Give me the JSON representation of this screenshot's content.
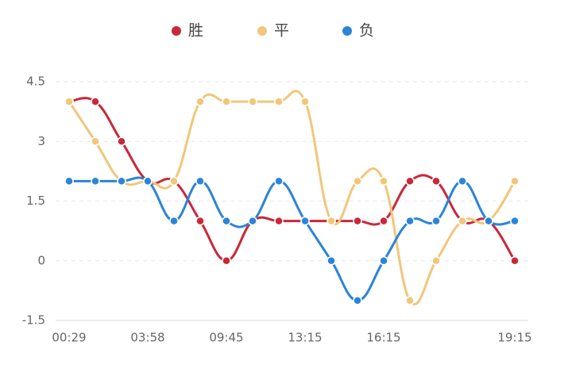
{
  "chart_data": {
    "type": "line",
    "categories": [
      "00:29",
      null,
      null,
      "03:58",
      null,
      null,
      "09:45",
      null,
      null,
      "13:15",
      null,
      null,
      "16:15",
      null,
      null,
      null,
      null,
      "19:15"
    ],
    "series": [
      {
        "name": "胜",
        "color": "#c9283a",
        "values": [
          4,
          4,
          3,
          2,
          2,
          1,
          0,
          1,
          1,
          1,
          1,
          1,
          1,
          2,
          2,
          1,
          1,
          0
        ]
      },
      {
        "name": "平",
        "color": "#f0c77a",
        "values": [
          4,
          3,
          2,
          2,
          2,
          4,
          4,
          4,
          4,
          4,
          1,
          2,
          2,
          -1,
          0,
          1,
          1,
          2
        ]
      },
      {
        "name": "负",
        "color": "#2b84d8",
        "values": [
          2,
          2,
          2,
          2,
          1,
          2,
          1,
          1,
          2,
          1,
          0,
          -1,
          0,
          1,
          1,
          2,
          1,
          1
        ]
      }
    ],
    "ylim": [
      -1.5,
      4.5
    ],
    "yticks": [
      -1.5,
      0,
      1.5,
      3,
      4.5
    ],
    "grid": true,
    "smooth": true
  }
}
